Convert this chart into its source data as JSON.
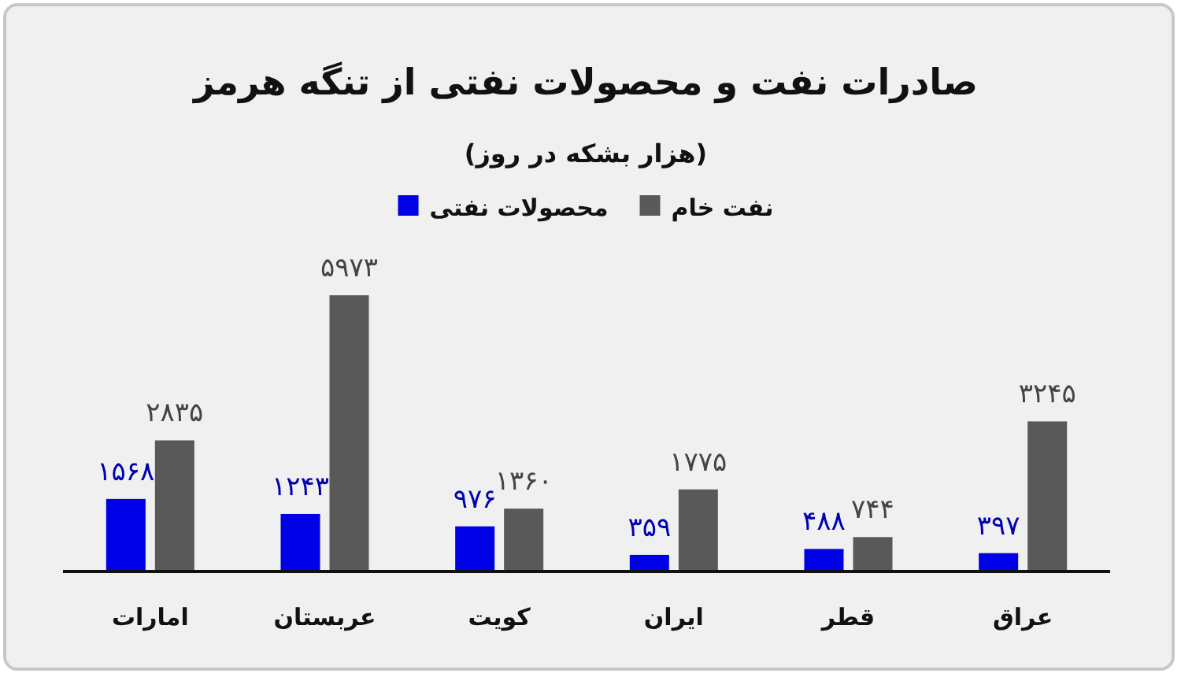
{
  "chart_data": {
    "type": "bar",
    "title": "صادرات نفت و محصولات نفتی از تنگه هرمز",
    "subtitle": "(هزار بشکه در روز)",
    "categories": [
      "امارات",
      "عربستان",
      "کویت",
      "ایران",
      "قطر",
      "عراق"
    ],
    "series": [
      {
        "name": "محصولات نفتی",
        "color": "#0000e6",
        "values": [
          1568,
          1243,
          976,
          359,
          488,
          397
        ],
        "value_labels": [
          "۱۵۶۸",
          "۱۲۴۳",
          "۹۷۶",
          "۳۵۹",
          "۴۸۸",
          "۳۹۷"
        ]
      },
      {
        "name": "نفت خام",
        "color": "#595959",
        "values": [
          2835,
          5973,
          1360,
          1775,
          744,
          3245
        ],
        "value_labels": [
          "۲۸۳۵",
          "۵۹۷۳",
          "۱۳۶۰",
          "۱۷۷۵",
          "۷۴۴",
          "۳۲۴۵"
        ]
      }
    ],
    "legend": "top"
  }
}
